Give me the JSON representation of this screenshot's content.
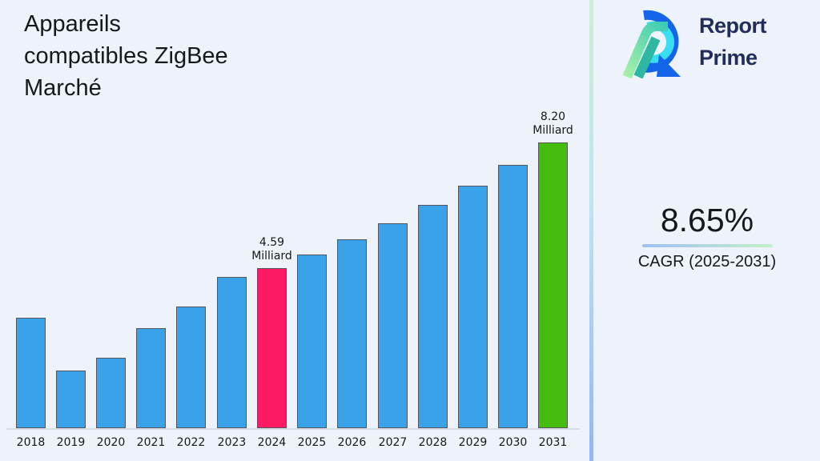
{
  "header": {
    "title": "Appareils\ncompatibles ZigBee\nMarché"
  },
  "brand": {
    "name": "Report Prime",
    "line1": "Report",
    "line2": "Prime"
  },
  "cagr": {
    "value": "8.65%",
    "label": "CAGR (2025-2031)"
  },
  "colors": {
    "background": "#EDF2FB",
    "bar_default": "#39A2E8",
    "bar_2024": "#FB1A63",
    "bar_2031": "#44BD10",
    "bar_border": "#55565c",
    "brand_text": "#232D5C",
    "logo_blue": "#1465E9",
    "logo_cyan": "#38DFF2",
    "logo_green": "#A7F0A9",
    "logo_teal": "#2EB8A4",
    "divider_top": "#cdeed6",
    "divider_bottom": "#94b6f1",
    "underline_left": "#9FC0F4",
    "underline_right": "#C3F0C6"
  },
  "chart_data": {
    "type": "bar",
    "title": "Appareils compatibles ZigBee Marché",
    "unit": "Milliard",
    "xlabel": "",
    "ylabel": "",
    "grid": false,
    "legend": false,
    "ylim": [
      0,
      8.6
    ],
    "categories": [
      "2018",
      "2019",
      "2020",
      "2021",
      "2022",
      "2023",
      "2024",
      "2025",
      "2026",
      "2027",
      "2028",
      "2029",
      "2030",
      "2031"
    ],
    "values": [
      3.17,
      1.66,
      2.02,
      2.87,
      3.5,
      4.33,
      4.59,
      4.99,
      5.42,
      5.89,
      6.4,
      6.95,
      7.55,
      8.2
    ],
    "bar_colors": {
      "default": "#39A2E8",
      "2024": "#FB1A63",
      "2031": "#44BD10"
    },
    "annotations": [
      {
        "category": "2024",
        "text": "4.59\nMilliard"
      },
      {
        "category": "2031",
        "text": "8.20\nMilliard"
      }
    ]
  }
}
